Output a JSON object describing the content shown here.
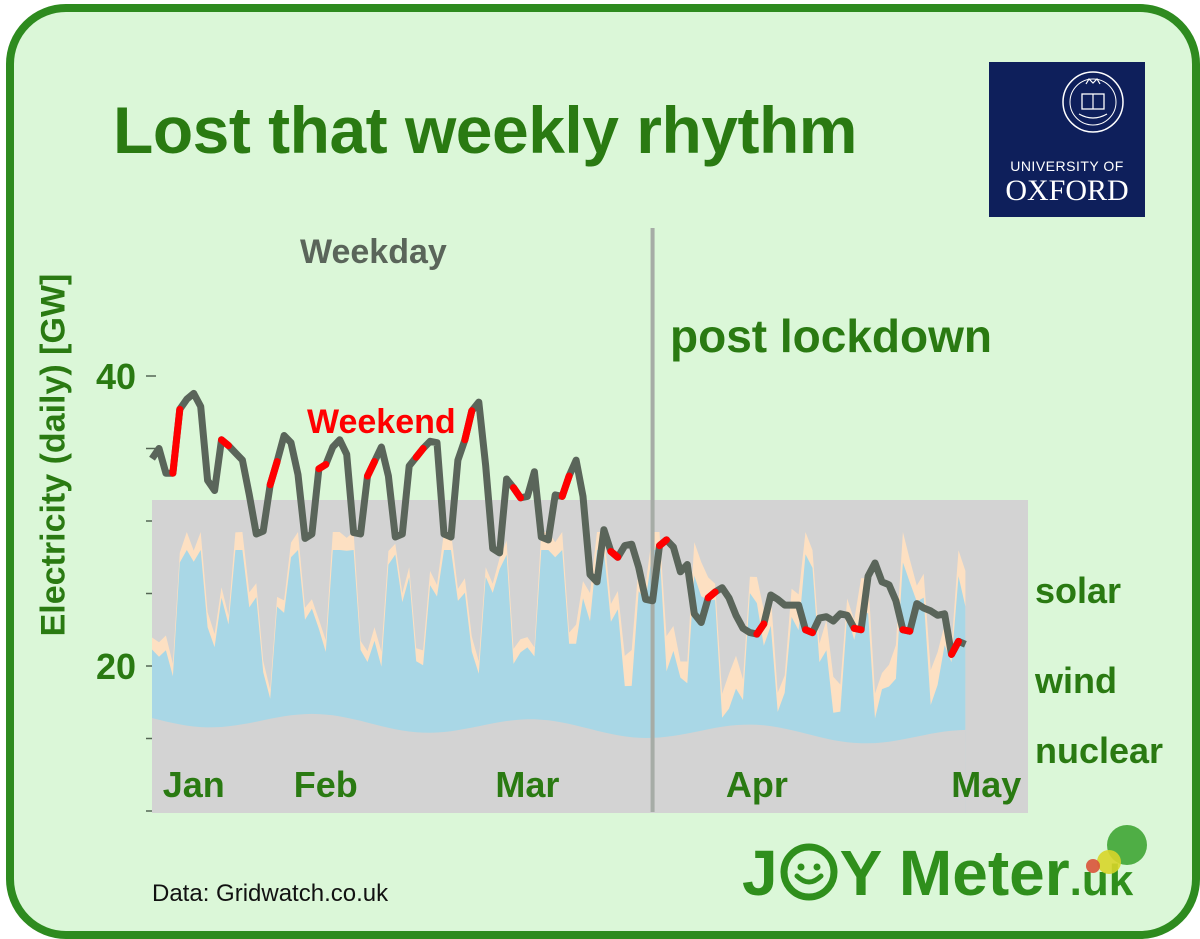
{
  "title": "Lost that weekly rhythm",
  "logo": {
    "line1": "UNIVERSITY OF",
    "line2": "OXFORD",
    "color": "#0e1f5b"
  },
  "source": "Data: Gridwatch.co.uk",
  "brand": {
    "j": "J",
    "rest": "Y Meter",
    "tld": ".uk",
    "color": "#2f8f1c"
  },
  "chart_data": {
    "type": "line",
    "ylabel": "Electricity (daily) [GW]",
    "ylim": [
      10,
      40
    ],
    "yticks": [
      20,
      40
    ],
    "x_range": [
      1,
      127
    ],
    "months": [
      {
        "label": "Jan",
        "day": 7
      },
      {
        "label": "Feb",
        "day": 26
      },
      {
        "label": "Mar",
        "day": 55
      },
      {
        "label": "Apr",
        "day": 88
      },
      {
        "label": "May",
        "day": 121
      }
    ],
    "lockdown_day": 73,
    "annotations": {
      "weekday": "Weekday",
      "weekend": "Weekend",
      "post": "post lockdown"
    },
    "series": [
      {
        "name": "Weekday",
        "color": "#5a655a",
        "weekend_color": "#ff0000",
        "values": [
          34.3,
          35.0,
          33.3,
          33.3,
          37.7,
          38.4,
          38.8,
          37.9,
          32.8,
          32.1,
          35.6,
          35.2,
          34.7,
          34.2,
          31.8,
          29.1,
          29.3,
          32.5,
          34.1,
          35.9,
          35.4,
          33.2,
          28.8,
          29.1,
          33.6,
          33.9,
          35.1,
          35.6,
          34.6,
          29.2,
          29.1,
          33.1,
          34.1,
          35.1,
          33.1,
          28.9,
          29.1,
          33.8,
          34.4,
          35.0,
          35.5,
          35.4,
          29.1,
          28.9,
          34.2,
          35.6,
          37.6,
          38.2,
          33.8,
          28.1,
          27.8,
          32.9,
          32.3,
          31.6,
          31.7,
          33.4,
          28.9,
          28.7,
          31.8,
          31.7,
          33.1,
          34.2,
          31.7,
          26.3,
          25.8,
          29.4,
          27.9,
          27.5,
          28.3,
          28.4,
          26.8,
          24.6,
          24.5,
          28.3,
          28.7,
          28.2,
          26.5,
          27.0,
          23.6,
          23.0,
          24.7,
          25.1,
          25.4,
          24.7,
          23.5,
          22.6,
          22.3,
          22.2,
          22.9,
          24.9,
          24.6,
          24.2,
          24.2,
          24.2,
          22.5,
          22.3,
          23.3,
          23.4,
          23.1,
          23.6,
          23.5,
          22.6,
          22.5,
          26.2,
          27.1,
          25.8,
          25.6,
          24.5,
          22.5,
          22.4,
          24.3,
          24.0,
          23.8,
          23.5,
          23.6,
          20.8,
          21.7,
          21.5
        ]
      },
      {
        "name": "solar"
      },
      {
        "name": "wind"
      },
      {
        "name": "nuclear"
      }
    ]
  }
}
